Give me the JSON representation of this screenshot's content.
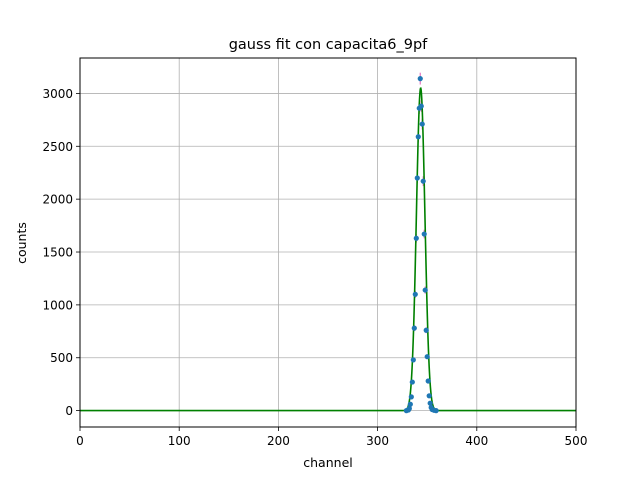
{
  "chart_data": {
    "type": "scatter",
    "title": "gauss fit con capacita6_9pf",
    "xlabel": "channel",
    "ylabel": "counts",
    "xlim": [
      0,
      500
    ],
    "ylim": [
      -155,
      3335
    ],
    "xticks": [
      0,
      100,
      200,
      300,
      400,
      500
    ],
    "yticks": [
      0,
      500,
      1000,
      1500,
      2000,
      2500,
      3000
    ],
    "xtick_labels": [
      "0",
      "100",
      "200",
      "300",
      "400",
      "500"
    ],
    "ytick_labels": [
      "0",
      "500",
      "1000",
      "1500",
      "2000",
      "2500",
      "3000"
    ],
    "grid": true,
    "series": [
      {
        "kind": "points-with-errorbars",
        "color": "#1f77b4",
        "errorbar_color": "#e377c2",
        "x": [
          329,
          331,
          332,
          333,
          334,
          335,
          336,
          337,
          338,
          339,
          340,
          341,
          342,
          343,
          344,
          345,
          346,
          347,
          348,
          349,
          350,
          351,
          352,
          353,
          354,
          355,
          357,
          359
        ],
        "y": [
          0,
          5,
          20,
          60,
          130,
          270,
          480,
          780,
          1100,
          1630,
          2200,
          2590,
          2860,
          3140,
          2880,
          2710,
          2170,
          1670,
          1140,
          760,
          510,
          280,
          140,
          70,
          30,
          10,
          3,
          0
        ]
      },
      {
        "kind": "fit-line",
        "color": "#008000",
        "amplitude": 3050,
        "mean": 343.4,
        "sigma": 4.3,
        "x_range": [
          0,
          500
        ]
      }
    ]
  }
}
